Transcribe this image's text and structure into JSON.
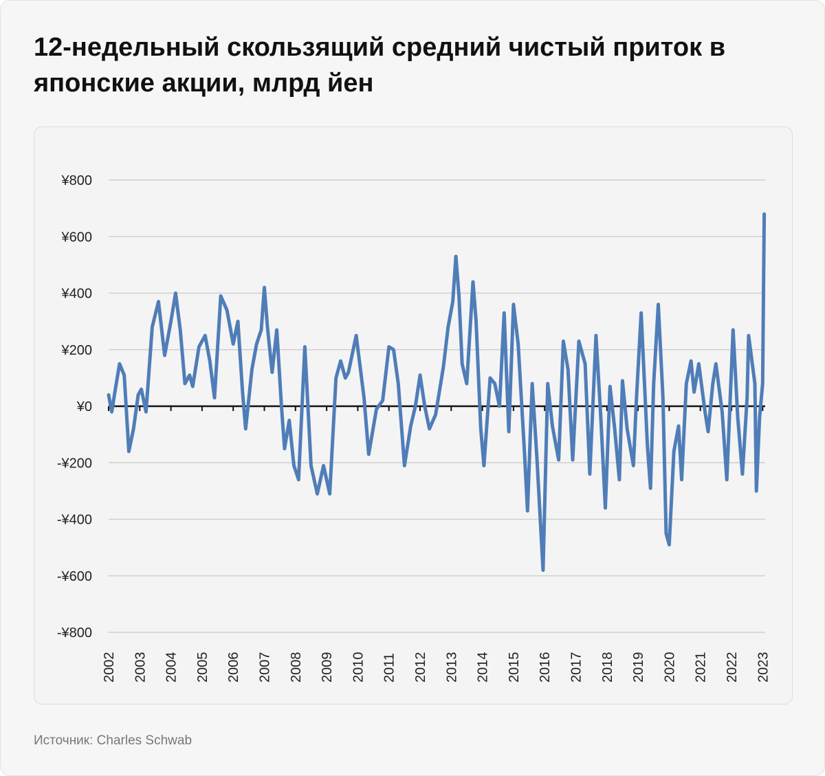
{
  "title": "12-недельный скользящий средний чистый приток в японские акции, млрд йен",
  "source": "Источник: Charles Schwab",
  "chart_data": {
    "type": "line",
    "title": "",
    "xlabel": "",
    "ylabel": "",
    "ylim": [
      -800,
      800
    ],
    "xlim": [
      2002,
      2023.1
    ],
    "grid": true,
    "y_ticks": [
      800,
      600,
      400,
      200,
      0,
      -200,
      -400,
      -600,
      -800
    ],
    "y_tick_labels": [
      "¥800",
      "¥600",
      "¥400",
      "¥200",
      "¥0",
      "-¥200",
      "-¥400",
      "-¥600",
      "-¥800"
    ],
    "x_tick_labels": [
      "2002",
      "2003",
      "2004",
      "2005",
      "2006",
      "2007",
      "2008",
      "2009",
      "2010",
      "2011",
      "2012",
      "2013",
      "2014",
      "2015",
      "2016",
      "2017",
      "2018",
      "2019",
      "2020",
      "2021",
      "2022",
      "2023"
    ],
    "line_color": "#4f7db8",
    "series": [
      {
        "x": [
          2002.0,
          2002.1,
          2002.2,
          2002.35,
          2002.5,
          2002.65,
          2002.8,
          2002.95,
          2003.05,
          2003.2,
          2003.4,
          2003.6,
          2003.8,
          2004.0,
          2004.15,
          2004.3,
          2004.45,
          2004.6,
          2004.7,
          2004.9,
          2005.1,
          2005.25,
          2005.4,
          2005.6,
          2005.8,
          2006.0,
          2006.15,
          2006.3,
          2006.4,
          2006.6,
          2006.75,
          2006.9,
          2007.0,
          2007.1,
          2007.25,
          2007.4,
          2007.55,
          2007.65,
          2007.8,
          2007.95,
          2008.1,
          2008.3,
          2008.5,
          2008.7,
          2008.9,
          2009.1,
          2009.3,
          2009.45,
          2009.6,
          2009.7,
          2009.95,
          2010.2,
          2010.35,
          2010.6,
          2010.8,
          2011.0,
          2011.15,
          2011.3,
          2011.5,
          2011.7,
          2011.85,
          2012.0,
          2012.15,
          2012.3,
          2012.5,
          2012.75,
          2012.9,
          2013.05,
          2013.15,
          2013.25,
          2013.35,
          2013.5,
          2013.7,
          2013.8,
          2013.95,
          2014.05,
          2014.25,
          2014.4,
          2014.55,
          2014.7,
          2014.85,
          2015.0,
          2015.15,
          2015.35,
          2015.45,
          2015.6,
          2015.75,
          2015.95,
          2016.1,
          2016.25,
          2016.45,
          2016.6,
          2016.75,
          2016.9,
          2017.1,
          2017.3,
          2017.45,
          2017.65,
          2017.8,
          2017.95,
          2018.1,
          2018.25,
          2018.4,
          2018.5,
          2018.65,
          2018.85,
          2018.95,
          2019.1,
          2019.3,
          2019.4,
          2019.5,
          2019.65,
          2019.8,
          2019.9,
          2020.0,
          2020.15,
          2020.3,
          2020.4,
          2020.55,
          2020.7,
          2020.8,
          2020.95,
          2021.15,
          2021.25,
          2021.4,
          2021.5,
          2021.7,
          2021.85,
          2022.05,
          2022.2,
          2022.35,
          2022.5,
          2022.55,
          2022.75,
          2022.8,
          2022.9,
          2023.0,
          2023.05
        ],
        "y": [
          40,
          -20,
          50,
          150,
          110,
          -160,
          -80,
          40,
          60,
          -20,
          280,
          370,
          180,
          300,
          400,
          270,
          80,
          110,
          70,
          210,
          250,
          160,
          30,
          390,
          340,
          220,
          300,
          50,
          -80,
          130,
          220,
          270,
          420,
          280,
          120,
          270,
          0,
          -150,
          -50,
          -210,
          -260,
          210,
          -210,
          -310,
          -210,
          -310,
          100,
          160,
          100,
          120,
          250,
          30,
          -170,
          -10,
          20,
          210,
          200,
          80,
          -210,
          -70,
          0,
          110,
          0,
          -80,
          -30,
          140,
          280,
          370,
          530,
          390,
          150,
          80,
          440,
          300,
          -80,
          -210,
          100,
          80,
          0,
          330,
          -90,
          360,
          220,
          -160,
          -370,
          80,
          -180,
          -580,
          80,
          -70,
          -190,
          230,
          130,
          -190,
          230,
          150,
          -240,
          250,
          -30,
          -360,
          70,
          -80,
          -260,
          90,
          -80,
          -210,
          30,
          330,
          -140,
          -290,
          80,
          360,
          30,
          -450,
          -490,
          -160,
          -70,
          -260,
          80,
          160,
          50,
          150,
          -20,
          -90,
          80,
          150,
          -20,
          -260,
          270,
          -40,
          -240,
          30,
          250,
          80,
          -300,
          -40,
          80,
          680
        ]
      }
    ]
  }
}
